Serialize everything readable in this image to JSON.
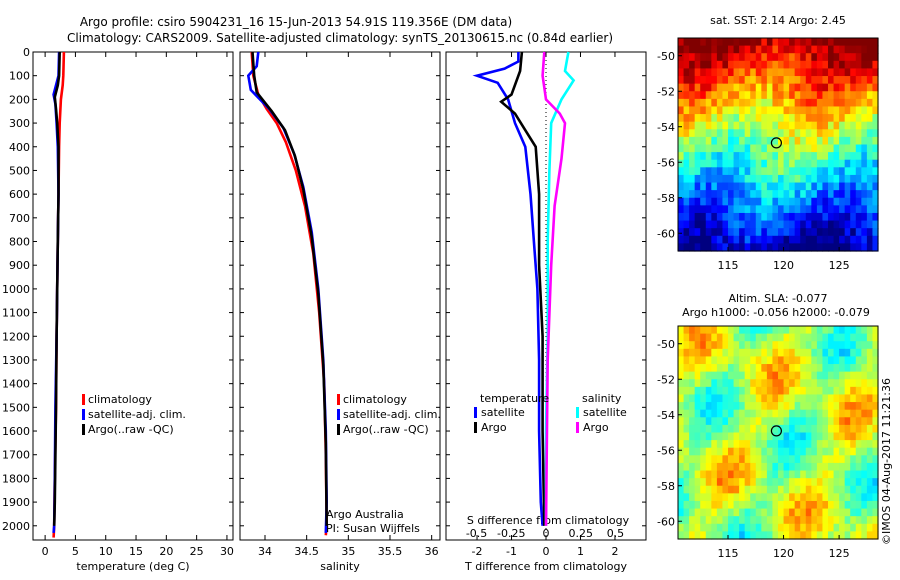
{
  "header": {
    "line1": "Argo profile: csiro 5904231_16 15-Jun-2013 54.91S 119.356E (DM data)",
    "line2": "Climatology: CARS2009. Satellite-adjusted climatology: synTS_20130615.nc (0.84d earlier)"
  },
  "watermark": "©IMOS 04-Aug-2017 11:21:36",
  "credits": {
    "line1": "Argo Australia",
    "line2": "PI: Susan Wijffels"
  },
  "colors": {
    "climatology": "#ff0000",
    "satellite": "#0000ff",
    "argo": "#000000",
    "sat_salinity": "#00ffff",
    "argo_salinity": "#ff00ff"
  },
  "chart_data": [
    {
      "type": "line",
      "id": "temperature",
      "xlabel": "temperature (deg C)",
      "ylabel": "",
      "xlim": [
        -2,
        31
      ],
      "ylim": [
        2060,
        0
      ],
      "xticks": [
        0,
        5,
        10,
        15,
        20,
        25,
        30
      ],
      "yticks": [
        0,
        100,
        200,
        300,
        400,
        500,
        600,
        700,
        800,
        900,
        1000,
        1100,
        1200,
        1300,
        1400,
        1500,
        1600,
        1700,
        1800,
        1900,
        2000
      ],
      "legend": [
        "climatology",
        "satellite-adj. clim.",
        "Argo(..raw -QC)"
      ],
      "series": [
        {
          "name": "climatology",
          "color": "#ff0000",
          "x": [
            3.1,
            3.0,
            2.9,
            2.6,
            2.4,
            2.3,
            2.2,
            2.1,
            2.0,
            1.9,
            1.8,
            1.6,
            1.5,
            1.4
          ],
          "y": [
            0,
            100,
            140,
            200,
            300,
            400,
            600,
            800,
            1000,
            1200,
            1500,
            1800,
            2000,
            2050
          ]
        },
        {
          "name": "satellite-adj. clim.",
          "color": "#0000ff",
          "x": [
            2.3,
            2.2,
            1.4,
            1.7,
            1.9,
            2.1,
            2.2,
            2.1,
            2.0,
            1.9,
            1.7,
            1.6,
            1.5,
            1.4
          ],
          "y": [
            0,
            100,
            180,
            220,
            300,
            400,
            600,
            800,
            1000,
            1200,
            1500,
            1800,
            2000,
            2030
          ]
        },
        {
          "name": "Argo(..raw -QC)",
          "color": "#000000",
          "x": [
            2.4,
            2.3,
            2.1,
            1.6,
            1.8,
            2.0,
            2.2,
            2.2,
            2.1,
            2.0,
            1.9,
            1.8,
            1.7,
            1.6,
            1.5
          ],
          "y": [
            0,
            100,
            140,
            190,
            240,
            300,
            400,
            600,
            800,
            1000,
            1200,
            1500,
            1700,
            1900,
            2000
          ]
        }
      ]
    },
    {
      "type": "line",
      "id": "salinity",
      "xlabel": "salinity",
      "ylabel": "",
      "xlim": [
        33.7,
        36.1
      ],
      "ylim": [
        2060,
        0
      ],
      "xticks": [
        34,
        34.5,
        35,
        35.5,
        36
      ],
      "xticklabels": [
        "34",
        "34.5",
        "35",
        "35.5",
        "36"
      ],
      "legend": [
        "climatology",
        "satellite-adj. clim.",
        "Argo(..raw -QC)"
      ],
      "series": [
        {
          "name": "climatology",
          "color": "#ff0000",
          "x": [
            33.84,
            33.86,
            33.92,
            34.02,
            34.14,
            34.25,
            34.37,
            34.48,
            34.58,
            34.65,
            34.71,
            34.73,
            34.74,
            34.73
          ],
          "y": [
            0,
            100,
            180,
            240,
            300,
            380,
            500,
            650,
            850,
            1100,
            1400,
            1700,
            2000,
            2040
          ]
        },
        {
          "name": "satellite-adj. clim.",
          "color": "#0000ff",
          "x": [
            33.92,
            33.9,
            33.8,
            33.83,
            34.05,
            34.22,
            34.35,
            34.46,
            34.56,
            34.64,
            34.7,
            34.73,
            34.74,
            34.73
          ],
          "y": [
            0,
            60,
            100,
            160,
            240,
            320,
            430,
            570,
            760,
            1000,
            1300,
            1600,
            1900,
            2030
          ]
        },
        {
          "name": "Argo(..raw -QC)",
          "color": "#000000",
          "x": [
            33.85,
            33.87,
            33.9,
            34.08,
            34.24,
            34.36,
            34.46,
            34.56,
            34.64,
            34.7,
            34.73,
            34.74
          ],
          "y": [
            0,
            100,
            170,
            250,
            330,
            440,
            580,
            780,
            1020,
            1320,
            1650,
            2000
          ]
        }
      ]
    },
    {
      "type": "line",
      "id": "difference",
      "xlabel": "T difference from climatology",
      "xlabel_top": "S difference from climatology",
      "xlim": [
        -2.9,
        2.9
      ],
      "ylim": [
        2060,
        0
      ],
      "xticks_bottom": [
        -2,
        -1,
        0,
        1,
        2
      ],
      "xticks_top": [
        -0.5,
        -0.25,
        0,
        0.25,
        0.5
      ],
      "xticklabels_top": [
        "-0.5",
        "-0.25",
        "0",
        "0.25",
        "0.5"
      ],
      "legend_titles": [
        "temperature",
        "salinity"
      ],
      "legend": [
        {
          "name": "satellite",
          "group": "temperature",
          "color": "#0000ff"
        },
        {
          "name": "Argo",
          "group": "temperature",
          "color": "#000000"
        },
        {
          "name": "satellite",
          "group": "salinity",
          "color": "#00ffff"
        },
        {
          "name": "Argo",
          "group": "salinity",
          "color": "#ff00ff"
        }
      ],
      "series": [
        {
          "name": "temperature satellite",
          "color": "#0000ff",
          "x": [
            -0.8,
            -0.8,
            -1.2,
            -2.0,
            -1.4,
            -1.1,
            -0.9,
            -0.6,
            -0.45,
            -0.35,
            -0.25,
            -0.2,
            -0.2,
            -0.15,
            -0.1
          ],
          "y": [
            0,
            40,
            70,
            100,
            130,
            200,
            300,
            400,
            600,
            800,
            1000,
            1300,
            1600,
            1900,
            2000
          ]
        },
        {
          "name": "temperature Argo",
          "color": "#000000",
          "x": [
            -0.7,
            -0.75,
            -1.0,
            -1.3,
            -0.9,
            -0.6,
            -0.3,
            -0.2,
            -0.2,
            -0.1,
            -0.1,
            -0.05
          ],
          "y": [
            0,
            80,
            180,
            210,
            260,
            330,
            400,
            600,
            900,
            1200,
            1600,
            2000
          ]
        },
        {
          "name": "salinity satellite",
          "color": "#00ffff",
          "x": [
            0.65,
            0.55,
            0.8,
            0.45,
            0.15,
            0.1,
            0.05,
            0.05,
            0.0,
            0.0
          ],
          "y": [
            0,
            80,
            120,
            200,
            300,
            500,
            800,
            1200,
            1600,
            2000
          ]
        },
        {
          "name": "salinity Argo",
          "color": "#ff00ff",
          "x": [
            -0.05,
            -0.1,
            0.0,
            0.4,
            0.55,
            0.45,
            0.25,
            0.15,
            0.05,
            0.0
          ],
          "y": [
            0,
            100,
            200,
            260,
            300,
            450,
            650,
            900,
            1300,
            2000
          ]
        }
      ]
    },
    {
      "type": "heatmap",
      "id": "sst-map",
      "title": "sat. SST: 2.14 Argo: 2.45",
      "xlim": [
        110.5,
        128.5
      ],
      "ylim": [
        -61,
        -49
      ],
      "xticks": [
        115,
        120,
        125
      ],
      "yticks": [
        -50,
        -52,
        -54,
        -56,
        -58,
        -60
      ],
      "marker": {
        "lon": 119.356,
        "lat": -54.91
      }
    },
    {
      "type": "heatmap",
      "id": "sla-map",
      "title": "Altim. SLA: -0.077",
      "subtitle": "Argo h1000: -0.056 h2000: -0.079",
      "xlim": [
        110.5,
        128.5
      ],
      "ylim": [
        -61,
        -49
      ],
      "xticks": [
        115,
        120,
        125
      ],
      "yticks": [
        -50,
        -52,
        -54,
        -56,
        -58,
        -60
      ],
      "marker": {
        "lon": 119.356,
        "lat": -54.91
      }
    }
  ]
}
